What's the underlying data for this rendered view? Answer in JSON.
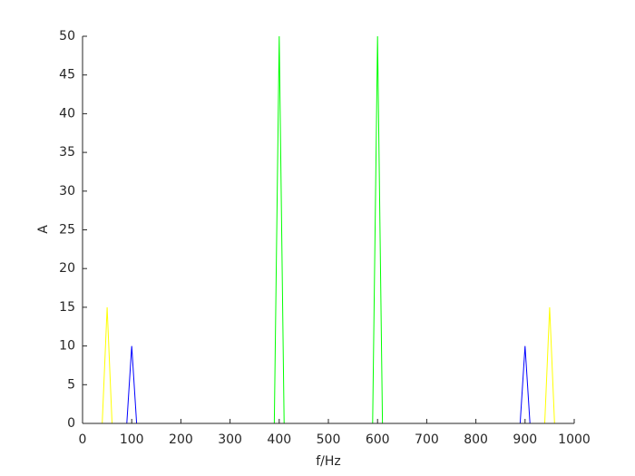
{
  "chart_data": {
    "type": "line",
    "xlabel": "f/Hz",
    "ylabel": "A",
    "x": [
      0,
      40,
      50,
      60,
      90,
      100,
      110,
      390,
      400,
      410,
      590,
      600,
      610,
      890,
      900,
      910,
      940,
      950,
      960,
      1000
    ],
    "series": [
      {
        "color": "#ffff00",
        "values": [
          0,
          0,
          15,
          0,
          0,
          0,
          0,
          0,
          0,
          0,
          0,
          0,
          0,
          0,
          0,
          0,
          0,
          15,
          0,
          0
        ]
      },
      {
        "color": "#0000ff",
        "values": [
          0,
          0,
          0,
          0,
          0,
          10,
          0,
          0,
          0,
          0,
          0,
          0,
          0,
          0,
          10,
          0,
          0,
          0,
          0,
          0
        ]
      },
      {
        "color": "#00ff00",
        "values": [
          0,
          0,
          0,
          0,
          0,
          0,
          0,
          0,
          50,
          0,
          0,
          50,
          0,
          0,
          0,
          0,
          0,
          0,
          0,
          0
        ]
      }
    ],
    "xlim": [
      0,
      1000
    ],
    "xticks": [
      0,
      100,
      200,
      300,
      400,
      500,
      600,
      700,
      800,
      900,
      1000
    ],
    "ylim": [
      0,
      50
    ],
    "yticks": [
      0,
      5,
      10,
      15,
      20,
      25,
      30,
      35,
      40,
      45,
      50
    ]
  }
}
